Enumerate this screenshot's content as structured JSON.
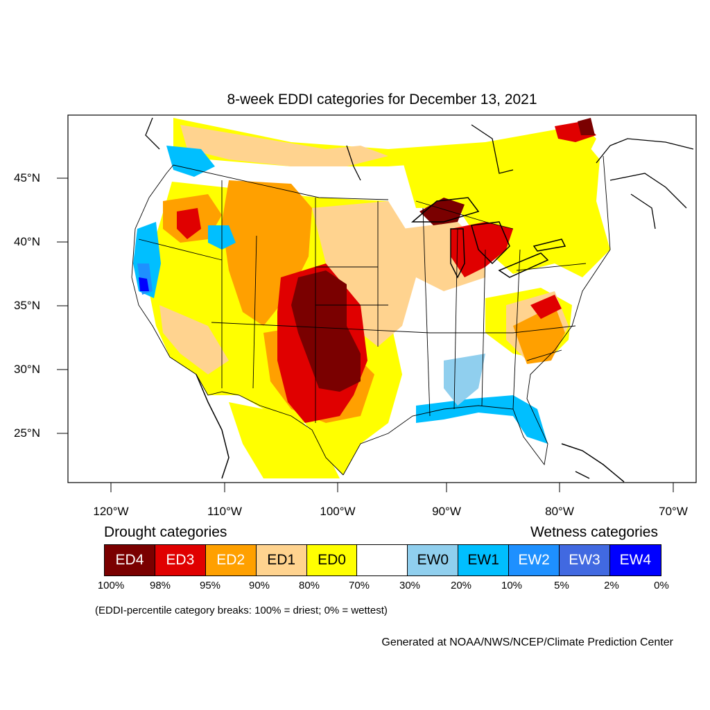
{
  "title": "8-week EDDI categories for December 13, 2021",
  "lat_labels": [
    "45°N",
    "40°N",
    "35°N",
    "30°N",
    "25°N"
  ],
  "lon_labels": [
    "120°W",
    "110°W",
    "100°W",
    "90°W",
    "80°W",
    "70°W"
  ],
  "legend": {
    "drought_heading": "Drought categories",
    "wetness_heading": "Wetness categories",
    "categories": [
      {
        "label": "ED4",
        "color": "#7a0000",
        "text_color": "#ffffff"
      },
      {
        "label": "ED3",
        "color": "#e00000",
        "text_color": "#ffffff"
      },
      {
        "label": "ED2",
        "color": "#ffa000",
        "text_color": "#ffffff"
      },
      {
        "label": "ED1",
        "color": "#ffd38f",
        "text_color": "#000000"
      },
      {
        "label": "ED0",
        "color": "#ffff00",
        "text_color": "#000000"
      },
      {
        "label": "",
        "color": "#ffffff",
        "text_color": "#000000"
      },
      {
        "label": "EW0",
        "color": "#90cfee",
        "text_color": "#000000"
      },
      {
        "label": "EW1",
        "color": "#00bfff",
        "text_color": "#000000"
      },
      {
        "label": "EW2",
        "color": "#1e90ff",
        "text_color": "#ffffff"
      },
      {
        "label": "EW3",
        "color": "#4169e1",
        "text_color": "#ffffff"
      },
      {
        "label": "EW4",
        "color": "#0000ff",
        "text_color": "#ffffff"
      }
    ],
    "breaks": [
      "100%",
      "98%",
      "95%",
      "90%",
      "80%",
      "70%",
      "30%",
      "20%",
      "10%",
      "5%",
      "2%",
      "0%"
    ]
  },
  "note": "(EDDI-percentile category breaks: 100% = driest; 0% = wettest)",
  "credit": "Generated at NOAA/NWS/NCEP/Climate Prediction Center"
}
